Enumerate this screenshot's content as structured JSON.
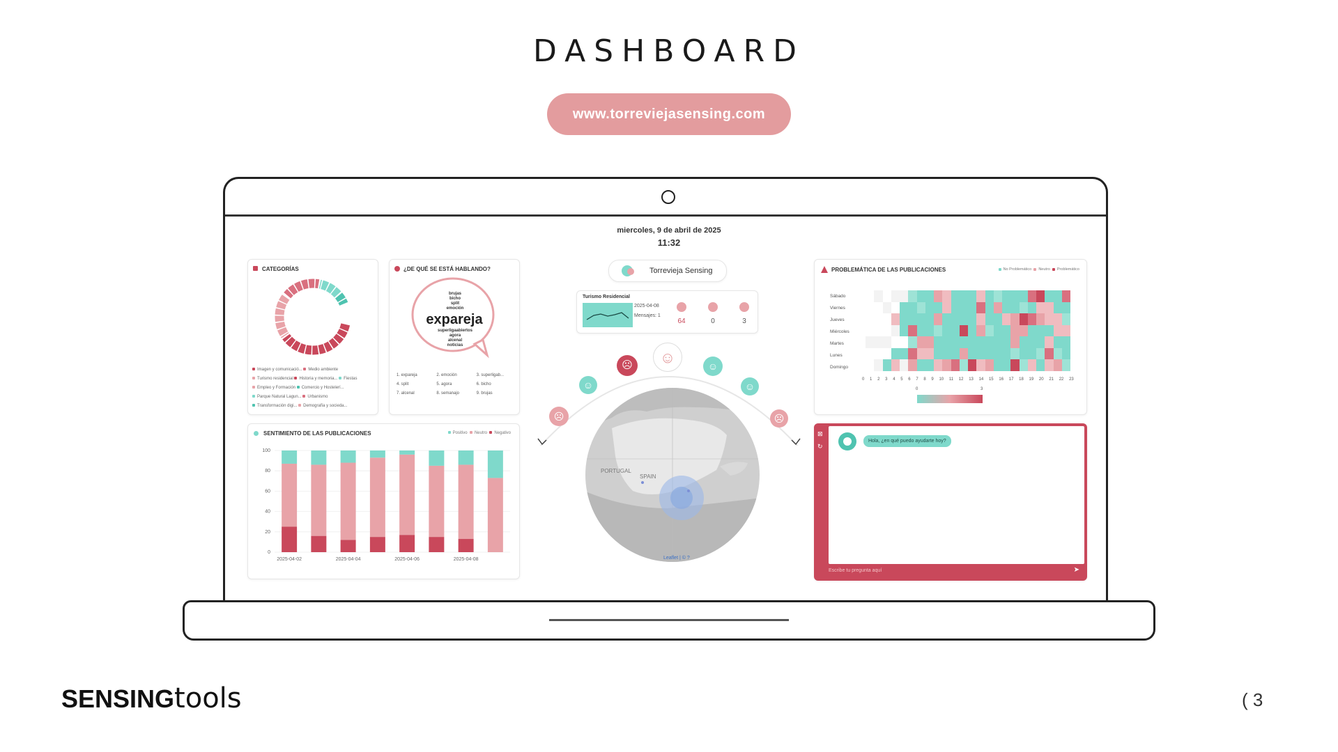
{
  "slide": {
    "title": "DASHBOARD",
    "url": "www.torreviejasensing.com",
    "logo_bold": "SENSING",
    "logo_light": "tools",
    "page_number": "( 3"
  },
  "dashboard": {
    "date": "miercoles, 9 de abril de 2025",
    "time": "11:32",
    "colors": {
      "teal": "#7fd9cb",
      "pink": "#e8a3a8",
      "red": "#c9485b",
      "grey": "#d9d9d9"
    },
    "categories": {
      "title": "CATEGORÍAS",
      "legend": [
        "Imagen y comunicació...",
        "Medio ambiente",
        "Turismo residencial",
        "Historia y memoria...",
        "Fiestas",
        "Empleo y Formación",
        "Comercio y Hostelerí...",
        "Parque Natural Lagun...",
        "Urbanismo",
        "Transformación digi...",
        "Demografía y socieda..."
      ]
    },
    "wordcloud": {
      "title": "¿DE QUÉ SE ESTÁ HABLANDO?",
      "main_word": "expareja",
      "small_words": [
        "brujas",
        "bicho",
        "split",
        "emoción",
        "superligaabiertos",
        "agora",
        "alcenal",
        "noticias"
      ],
      "ranking": [
        "1. expareja",
        "2. emoción",
        "3. superligab...",
        "4. split",
        "5. agora",
        "6. bicho",
        "7. alcenal",
        "8. semanajo",
        "9. brujas"
      ]
    },
    "center": {
      "brand": "Torrevieja Sensing",
      "topic": "Turismo Residencial",
      "topic_date": "2025-04-08",
      "topic_messages": "Mensajes: 1",
      "counts": [
        64,
        0,
        3
      ],
      "map_labels": [
        "PORTUGAL",
        "SPAIN"
      ],
      "map_attr": "Leaflet | © ?"
    },
    "problematica": {
      "title": "PROBLEMÁTICA DE LAS PUBLICACIONES",
      "legend": [
        "No Problemático",
        "Neutro",
        "Problemático"
      ],
      "days": [
        "Sábado",
        "Viernes",
        "Jueves",
        "Miércoles",
        "Martes",
        "Lunes",
        "Domingo"
      ],
      "hours": [
        "0",
        "1",
        "2",
        "3",
        "4",
        "5",
        "6",
        "7",
        "8",
        "9",
        "10",
        "11",
        "12",
        "13",
        "14",
        "15",
        "16",
        "17",
        "18",
        "19",
        "20",
        "21",
        "22",
        "23"
      ],
      "scale_min": "0",
      "scale_max": "3"
    },
    "sentimiento": {
      "title": "SENTIMIENTO DE LAS PUBLICACIONES",
      "legend": [
        "Positivo",
        "Neutro",
        "Negativo"
      ]
    },
    "chat": {
      "bot_message": "Hola, ¿en qué puedo ayudarte hoy?",
      "input_placeholder": "Escribe tu pregunta aquí"
    }
  },
  "chart_data": {
    "type": "bar",
    "title": "SENTIMIENTO DE LAS PUBLICACIONES",
    "stacked": true,
    "categories": [
      "2025-04-02",
      "2025-04-03",
      "2025-04-04",
      "2025-04-05",
      "2025-04-06",
      "2025-04-07",
      "2025-04-08",
      "2025-04-09"
    ],
    "x_tick_labels": [
      "2025-04-02",
      "2025-04-04",
      "2025-04-06",
      "2025-04-08"
    ],
    "series": [
      {
        "name": "Negativo",
        "values": [
          25,
          16,
          12,
          15,
          17,
          15,
          13,
          0
        ]
      },
      {
        "name": "Neutro",
        "values": [
          62,
          70,
          76,
          78,
          79,
          70,
          73,
          73
        ]
      },
      {
        "name": "Positivo",
        "values": [
          13,
          14,
          12,
          7,
          4,
          15,
          14,
          27
        ]
      }
    ],
    "ylim": [
      0,
      100
    ],
    "yticks": [
      0,
      20,
      40,
      60,
      80,
      100
    ]
  }
}
